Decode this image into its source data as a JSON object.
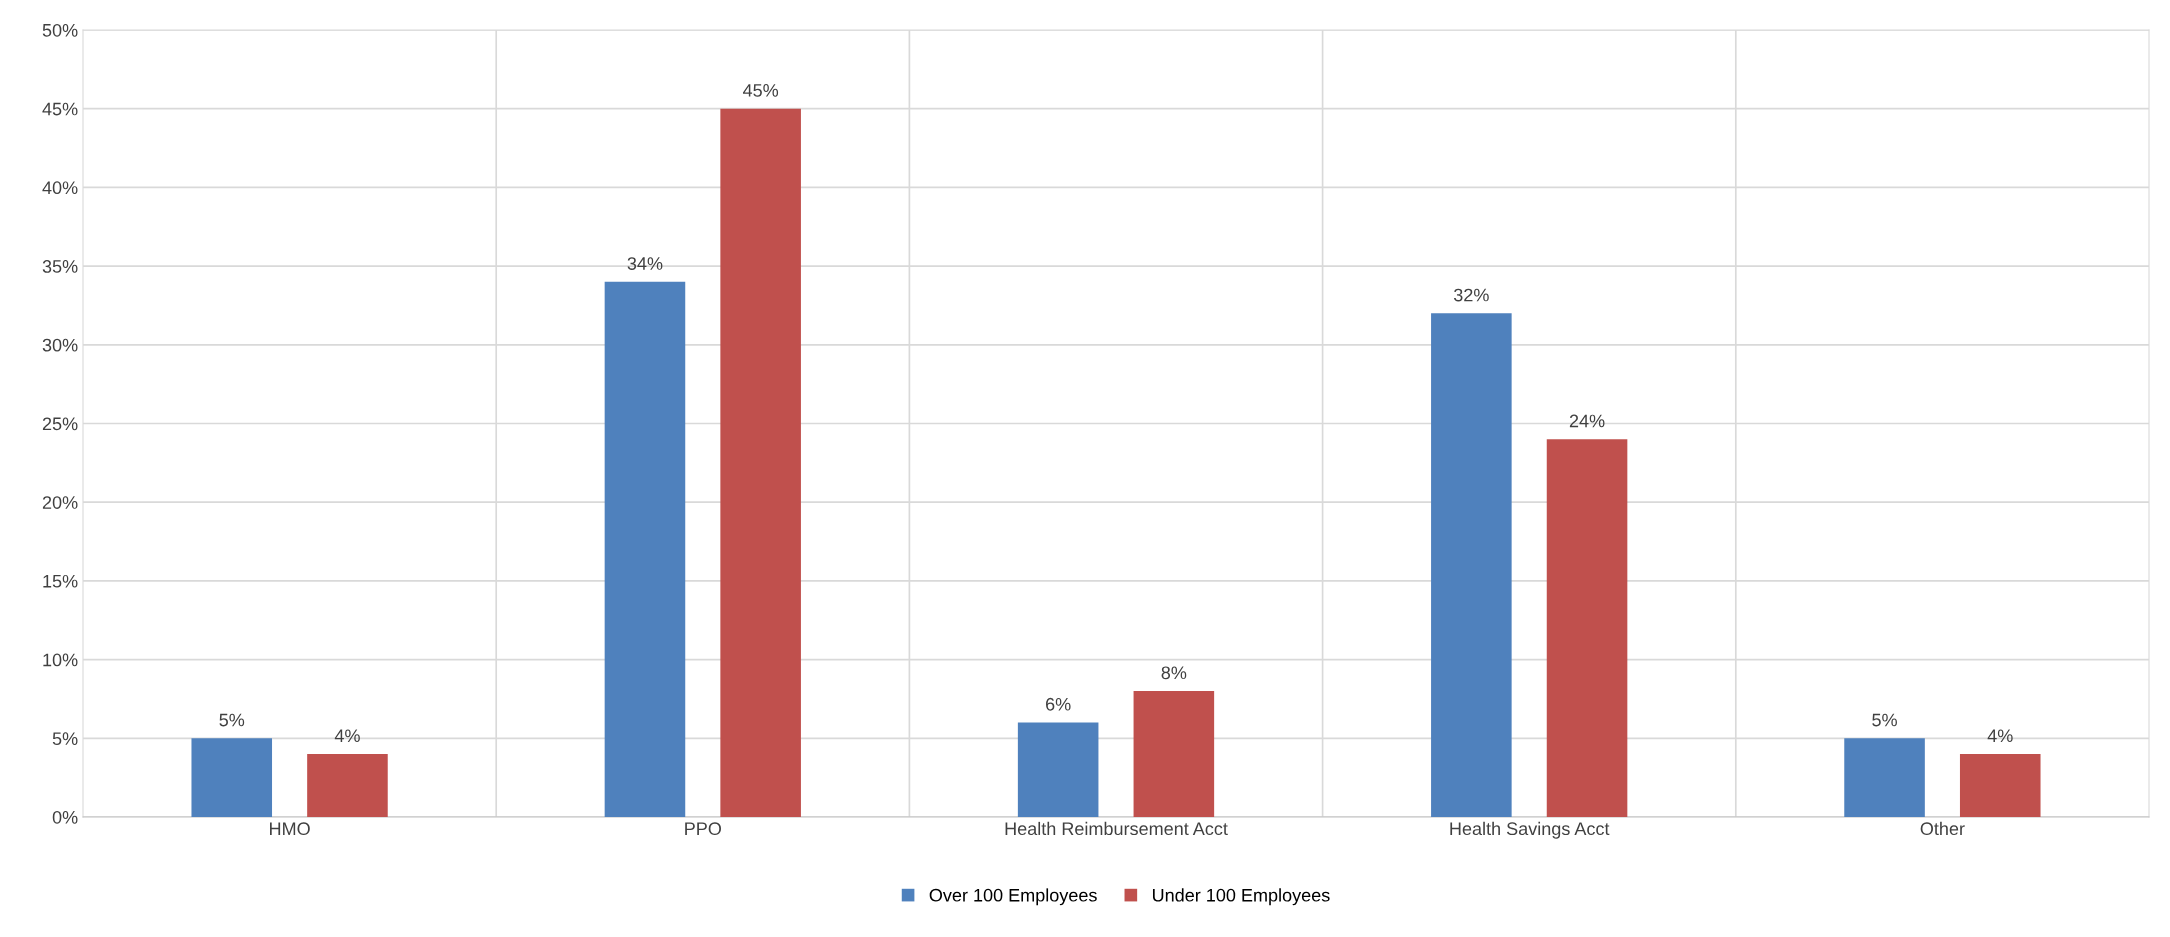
{
  "chart_data": {
    "type": "bar",
    "categories": [
      "HMO",
      "PPO",
      "Health Reimbursement Acct",
      "Health Savings Acct",
      "Other"
    ],
    "series": [
      {
        "name": "Over 100 Employees",
        "color": "#4f81bd",
        "values": [
          5,
          34,
          6,
          32,
          5
        ]
      },
      {
        "name": "Under 100 Employees",
        "color": "#c0504d",
        "values": [
          4,
          45,
          8,
          24,
          4
        ]
      }
    ],
    "ylim": [
      0,
      50
    ],
    "yticks": [
      {
        "value": 0,
        "label": "0%"
      },
      {
        "value": 5,
        "label": "5%"
      },
      {
        "value": 10,
        "label": "10%"
      },
      {
        "value": 15,
        "label": "15%"
      },
      {
        "value": 20,
        "label": "20%"
      },
      {
        "value": 25,
        "label": "25%"
      },
      {
        "value": 30,
        "label": "30%"
      },
      {
        "value": 35,
        "label": "35%"
      },
      {
        "value": 40,
        "label": "40%"
      },
      {
        "value": 45,
        "label": "45%"
      },
      {
        "value": 50,
        "label": "50%"
      }
    ],
    "value_labels": [
      [
        "5%",
        "34%",
        "6%",
        "32%",
        "5%"
      ],
      [
        "4%",
        "45%",
        "8%",
        "24%",
        "4%"
      ]
    ],
    "grid": true,
    "legend": "bottom"
  }
}
